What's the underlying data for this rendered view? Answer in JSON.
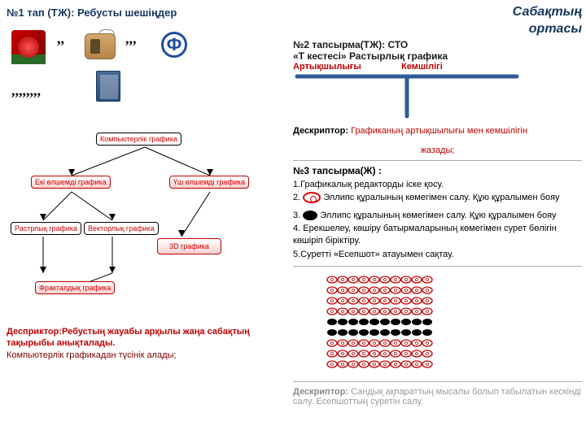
{
  "main_title_line1": "Сабақтың",
  "main_title_line2": "ортасы",
  "left": {
    "task1_title": "№1 тап (ТЖ): Ребусты шешіңдер",
    "commas1": ",,",
    "commas2": ",,,",
    "commas3": ",,,,,,,,",
    "phi": "Ф",
    "tree": {
      "root": "Компьютерлік графика",
      "n2": "Екі өлшемді графика",
      "n3": "Үш өлшемді графика",
      "n4": "Растрлық графика",
      "n5": "Векторлық графика",
      "n6": "3D графика",
      "n7": "Фракталдық графика"
    },
    "desc_label": "Десприктор:",
    "desc_body": "Ребустың жауабы арқылы жаңа сабақтың тақырыбы анықталады.",
    "desc_sub": "Компьютерлік графикадан түсінік алады;"
  },
  "right": {
    "task2_title": "№2 тапсырма(ТЖ): СТО",
    "task2_sub": " «Т кестесі» Растырлық графика",
    "adv": "Артықшылығы",
    "dis": "Кемшілігі",
    "desc_label": "Дескриптор:",
    "desc_body": " Графиканың артықшылығы мен кемшілігін",
    "desc_body2": "жазады;",
    "task3_title": "№3 тапсырма(Ж) :",
    "t3_1": "1.Графикалық редакторды іске қосу.",
    "t3_2a": "2.",
    "t3_2b": "Эллипс құралының көмегімен салу. Құю құралымен бояу",
    "t3_3a": "3.",
    "t3_3b": "Эллипс құралының көмегімен салу. Құю құралымен бояу",
    "t3_4": "4. Ерекшелеу, көшіру батырмаларының көмегімен сурет бөлігін көшіріп біріктіру.",
    "t3_5": "5.Суретті «Есепшот» атауымен сақтау.",
    "grid": {
      "rows": 9,
      "cols": 10,
      "black_rows": [
        4,
        5
      ],
      "circle_radius": 5,
      "spacing": 13,
      "colors": {
        "ring": "#c00000",
        "black": "#000000"
      }
    },
    "bottom_label": "Дескриптор:",
    "bottom_body": " Сандық ақпараттың мысалы болып табылатын кескінді салу. Есепшоттың суретін салу."
  }
}
